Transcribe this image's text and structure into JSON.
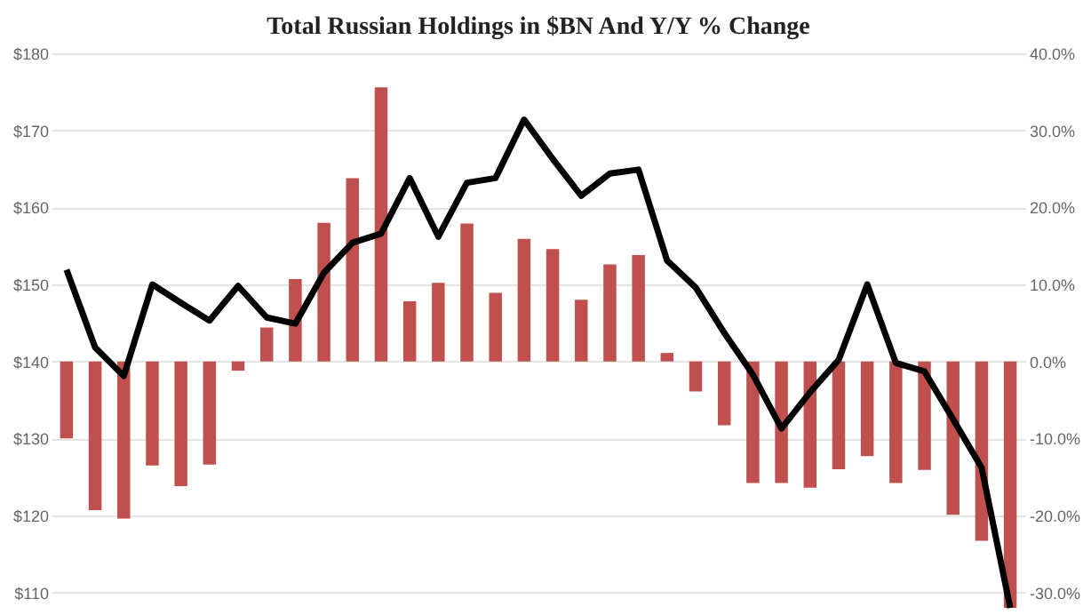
{
  "chart_data": {
    "type": "bar",
    "title": "Total Russian Holdings in $BN And Y/Y % Change",
    "categories": [
      null,
      null,
      null,
      null,
      null,
      null,
      null,
      null,
      null,
      null,
      null,
      null,
      null,
      null,
      null,
      null,
      null,
      null,
      null,
      null,
      null,
      null,
      null,
      null,
      null,
      null,
      null,
      null,
      null,
      null,
      null,
      null,
      null,
      null
    ],
    "series": [
      {
        "axis": "y2",
        "color": "#c0504d",
        "values": [
          -10,
          -19.3,
          -20.4,
          -13.5,
          -16.2,
          -13.4,
          -1.2,
          4.4,
          10.7,
          18.0,
          23.8,
          35.6,
          7.8,
          10.2,
          17.9,
          8.9,
          15.9,
          14.6,
          8.0,
          12.6,
          13.8,
          1.1,
          -3.9,
          -8.3,
          -15.8,
          -15.8,
          -16.4,
          -14.0,
          -12.3,
          -15.8,
          -14.1,
          -19.9,
          -23.3,
          -32
        ]
      },
      {
        "type": "line",
        "axis": "y",
        "color": "#000000",
        "values": [
          151.9,
          141.8,
          138.1,
          150.0,
          147.6,
          145.3,
          149.8,
          145.7,
          144.9,
          151.5,
          155.4,
          156.6,
          163.8,
          156.2,
          163.2,
          163.8,
          171.4,
          166.3,
          161.5,
          164.4,
          164.9,
          153.1,
          149.6,
          143.7,
          138.3,
          131.3,
          136.0,
          140.2,
          150.0,
          139.8,
          138.7,
          132.5,
          126.2,
          108
        ]
      }
    ],
    "ylim": [
      108,
      180
    ],
    "yticks": [
      {
        "value": 110,
        "label": "$110"
      },
      {
        "value": 120,
        "label": "$120"
      },
      {
        "value": 130,
        "label": "$130"
      },
      {
        "value": 140,
        "label": "$140"
      },
      {
        "value": 150,
        "label": "$150"
      },
      {
        "value": 160,
        "label": "$160"
      },
      {
        "value": 170,
        "label": "$170"
      },
      {
        "value": 180,
        "label": "$180"
      }
    ],
    "y2lim": [
      -32,
      40
    ],
    "y2ticks": [
      {
        "value": -30,
        "label": "-30.0%"
      },
      {
        "value": -20,
        "label": "-20.0%"
      },
      {
        "value": -10,
        "label": "-10.0%"
      },
      {
        "value": 0,
        "label": "0.0%"
      },
      {
        "value": 10,
        "label": "10.0%"
      },
      {
        "value": 20,
        "label": "20.0%"
      },
      {
        "value": 30,
        "label": "30.0%"
      },
      {
        "value": 40,
        "label": "40.0%"
      }
    ],
    "grid": "y",
    "tick_labels": "y",
    "line_style": "solid",
    "marker": "none"
  }
}
